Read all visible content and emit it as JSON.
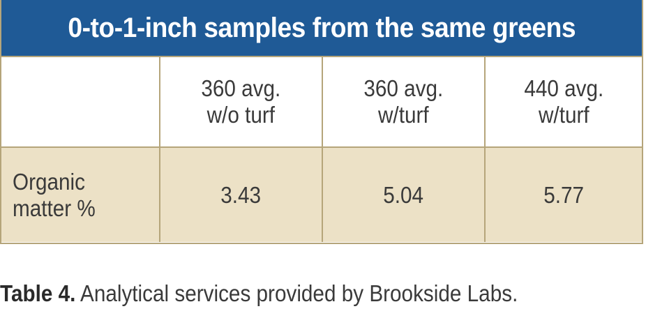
{
  "table": {
    "title": "0-to-1-inch samples from the same greens",
    "columns": [
      "",
      "360 avg.\nw/o turf",
      "360 avg.\nw/turf",
      "440 avg.\nw/turf"
    ],
    "rows": [
      {
        "label": "Organic\nmatter %",
        "values": [
          "3.43",
          "5.04",
          "5.77"
        ]
      }
    ],
    "colors": {
      "title_bg": "#1f5a96",
      "data_row_bg": "#ece1c6",
      "border": "#b5a57a"
    }
  },
  "caption": {
    "label": "Table 4.",
    "text": " Analytical services provided by Brookside Labs."
  }
}
